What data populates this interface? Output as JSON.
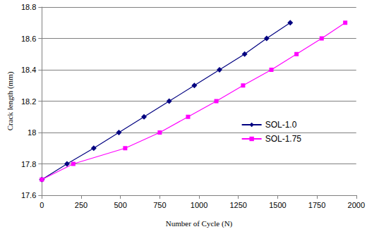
{
  "chart_data": {
    "type": "line",
    "x_label": "Number of Cycle (N)",
    "y_label": "Crack length (mm)",
    "xlim": [
      0,
      2000
    ],
    "xticks": [
      0,
      250,
      500,
      750,
      1000,
      1250,
      1500,
      1750,
      2000
    ],
    "ylim": [
      17.6,
      18.8
    ],
    "yticks": [
      17.6,
      17.8,
      18,
      18.2,
      18.4,
      18.6,
      18.8
    ],
    "grid": true,
    "legend": "right",
    "series": [
      {
        "name": "SOL-1.0",
        "color": "#000080",
        "marker": "diamond",
        "x": [
          0,
          160,
          330,
          490,
          650,
          810,
          970,
          1130,
          1290,
          1430,
          1580
        ],
        "values": [
          17.7,
          17.8,
          17.9,
          18.0,
          18.1,
          18.2,
          18.3,
          18.4,
          18.5,
          18.6,
          18.7
        ]
      },
      {
        "name": "SOL-1.75",
        "color": "#ff00ff",
        "marker": "square",
        "x": [
          0,
          200,
          530,
          750,
          930,
          1110,
          1280,
          1460,
          1620,
          1780,
          1930
        ],
        "values": [
          17.7,
          17.8,
          17.9,
          18.0,
          18.1,
          18.2,
          18.3,
          18.4,
          18.5,
          18.6,
          18.7
        ]
      }
    ]
  }
}
